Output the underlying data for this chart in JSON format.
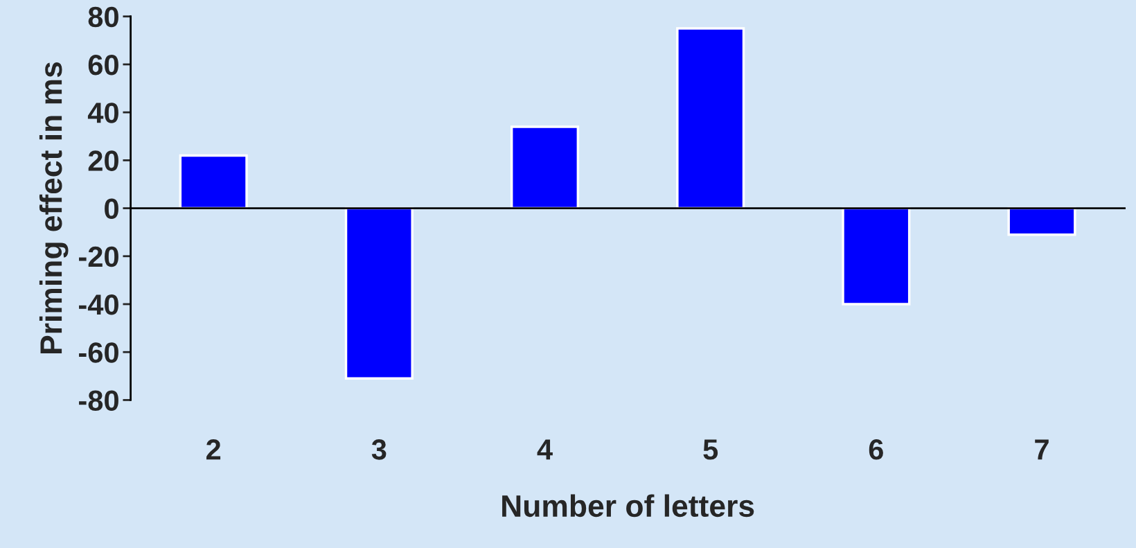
{
  "chart_data": {
    "type": "bar",
    "xlabel": "Number of letters",
    "ylabel": "Priming effect in ms",
    "categories": [
      "2",
      "3",
      "4",
      "5",
      "6",
      "7"
    ],
    "values": [
      22,
      -71,
      34,
      75,
      -40,
      -11
    ],
    "color": "#0000ff",
    "ylim": [
      -80,
      80
    ],
    "yticks": [
      -80,
      -60,
      -40,
      -20,
      0,
      20,
      40,
      60,
      80
    ]
  }
}
